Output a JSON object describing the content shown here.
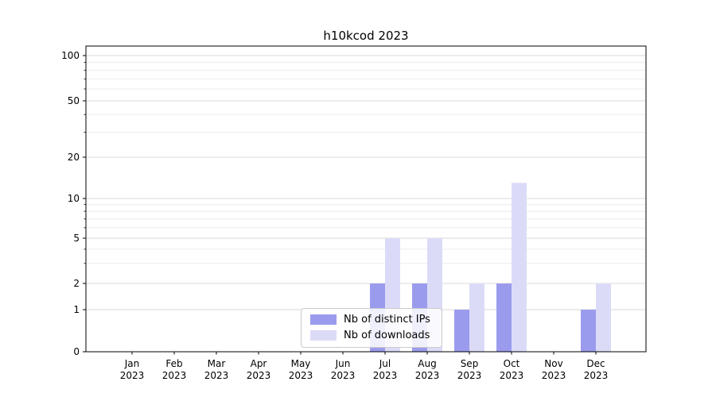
{
  "chart_data": {
    "type": "bar",
    "title": "h10kcod 2023",
    "categories": [
      "Jan",
      "Feb",
      "Mar",
      "Apr",
      "May",
      "Jun",
      "Jul",
      "Aug",
      "Sep",
      "Oct",
      "Nov",
      "Dec"
    ],
    "category_year": "2023",
    "series": [
      {
        "name": "Nb of distinct IPs",
        "color": "#9b9bee",
        "values": [
          0,
          0,
          0,
          0,
          0,
          0,
          2,
          2,
          1,
          2,
          0,
          1
        ]
      },
      {
        "name": "Nb of downloads",
        "color": "#dbdbf8",
        "values": [
          0,
          0,
          0,
          0,
          0,
          0,
          5,
          5,
          2,
          13,
          0,
          2
        ]
      }
    ],
    "yscale": "symlog",
    "ylim": [
      0,
      100
    ],
    "yticks": [
      0,
      1,
      2,
      5,
      10,
      20,
      50,
      100
    ],
    "minor_yticks": [
      3,
      4,
      6,
      7,
      8,
      9,
      30,
      40,
      60,
      70,
      80,
      90
    ],
    "grid": true,
    "legend_position": "lower center",
    "colors": {
      "grid_major": "#d8d8d8",
      "grid_minor": "#ebebeb",
      "axis": "#000000",
      "background": "#ffffff"
    }
  }
}
